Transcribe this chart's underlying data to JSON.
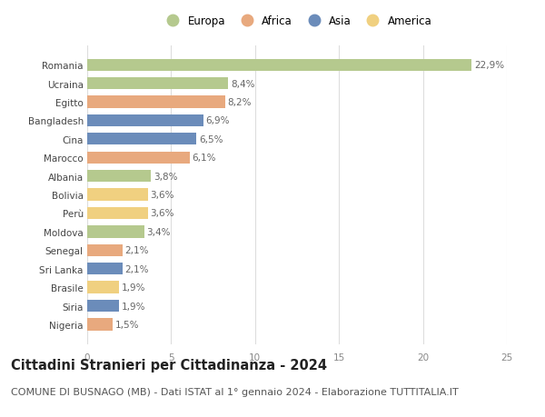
{
  "categories": [
    "Romania",
    "Ucraina",
    "Egitto",
    "Bangladesh",
    "Cina",
    "Marocco",
    "Albania",
    "Bolivia",
    "Perù",
    "Moldova",
    "Senegal",
    "Sri Lanka",
    "Brasile",
    "Siria",
    "Nigeria"
  ],
  "values": [
    22.9,
    8.4,
    8.2,
    6.9,
    6.5,
    6.1,
    3.8,
    3.6,
    3.6,
    3.4,
    2.1,
    2.1,
    1.9,
    1.9,
    1.5
  ],
  "labels": [
    "22,9%",
    "8,4%",
    "8,2%",
    "6,9%",
    "6,5%",
    "6,1%",
    "3,8%",
    "3,6%",
    "3,6%",
    "3,4%",
    "2,1%",
    "2,1%",
    "1,9%",
    "1,9%",
    "1,5%"
  ],
  "continents": [
    "Europa",
    "Europa",
    "Africa",
    "Asia",
    "Asia",
    "Africa",
    "Europa",
    "America",
    "America",
    "Europa",
    "Africa",
    "Asia",
    "America",
    "Asia",
    "Africa"
  ],
  "continent_colors": {
    "Europa": "#b5c98e",
    "Africa": "#e8a97e",
    "Asia": "#6b8cba",
    "America": "#f0d080"
  },
  "legend_order": [
    "Europa",
    "Africa",
    "Asia",
    "America"
  ],
  "title": "Cittadini Stranieri per Cittadinanza - 2024",
  "subtitle": "COMUNE DI BUSNAGO (MB) - Dati ISTAT al 1° gennaio 2024 - Elaborazione TUTTITALIA.IT",
  "xlim": [
    0,
    25
  ],
  "xticks": [
    0,
    5,
    10,
    15,
    20,
    25
  ],
  "background_color": "#ffffff",
  "grid_color": "#dddddd",
  "bar_height": 0.65,
  "title_fontsize": 10.5,
  "subtitle_fontsize": 8,
  "label_fontsize": 7.5,
  "tick_fontsize": 7.5,
  "legend_fontsize": 8.5
}
